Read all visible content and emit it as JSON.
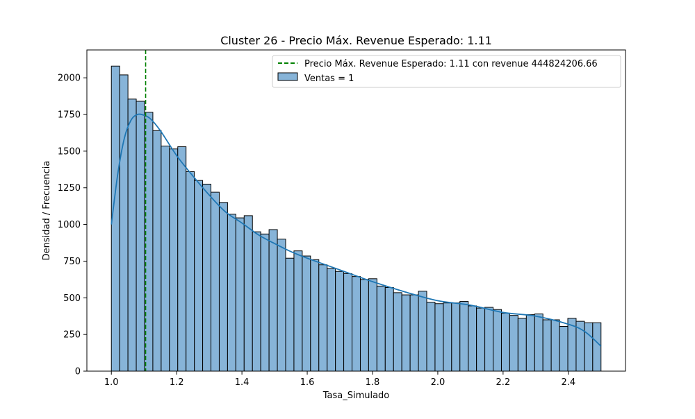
{
  "chart_data": {
    "type": "bar",
    "title": "Cluster 26 - Precio Máx. Revenue Esperado: 1.11",
    "xlabel": "Tasa_Simulado",
    "ylabel": "Densidad / Frecuencia",
    "xlim": [
      0.925,
      2.575
    ],
    "ylim": [
      0,
      2190
    ],
    "xticks": [
      "1.0",
      "1.2",
      "1.4",
      "1.6",
      "1.8",
      "2.0",
      "2.2",
      "2.4"
    ],
    "yticks": [
      "0",
      "250",
      "500",
      "750",
      "1000",
      "1250",
      "1500",
      "1750",
      "2000"
    ],
    "grid": false,
    "legend_position": "top-right",
    "histogram": {
      "label": "Ventas = 1",
      "bin_start": 1.0,
      "bin_end": 2.5,
      "color": "#87b4d8",
      "edge_color": "#000000",
      "values": [
        2080,
        2020,
        1855,
        1840,
        1765,
        1640,
        1535,
        1515,
        1530,
        1360,
        1300,
        1275,
        1220,
        1150,
        1070,
        1045,
        1060,
        950,
        935,
        965,
        900,
        770,
        820,
        785,
        760,
        725,
        700,
        680,
        665,
        645,
        625,
        630,
        580,
        570,
        535,
        520,
        520,
        545,
        470,
        460,
        465,
        465,
        475,
        445,
        430,
        435,
        420,
        395,
        380,
        360,
        385,
        390,
        350,
        350,
        305,
        360,
        340,
        330,
        330
      ]
    },
    "kde": {
      "color": "#1f77b4",
      "x": [
        1.0,
        1.02,
        1.04,
        1.06,
        1.08,
        1.1,
        1.12,
        1.15,
        1.2,
        1.25,
        1.3,
        1.35,
        1.4,
        1.45,
        1.5,
        1.55,
        1.6,
        1.7,
        1.8,
        1.9,
        2.0,
        2.1,
        2.2,
        2.3,
        2.4,
        2.45,
        2.5
      ],
      "y": [
        1000,
        1350,
        1590,
        1710,
        1750,
        1745,
        1720,
        1640,
        1470,
        1330,
        1200,
        1085,
        1010,
        930,
        870,
        815,
        770,
        690,
        610,
        540,
        480,
        450,
        400,
        375,
        320,
        270,
        170
      ]
    },
    "reference_line": {
      "x": 1.105,
      "color": "#008000",
      "label": "Precio Máx. Revenue Esperado: 1.11 con revenue 444824206.66"
    }
  }
}
